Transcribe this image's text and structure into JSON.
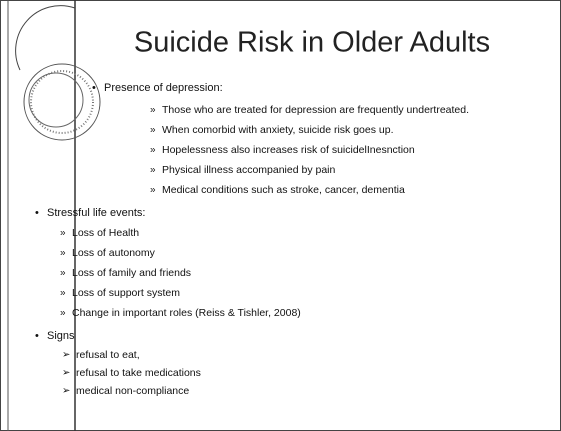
{
  "title": "Suicide Risk in Older Adults",
  "sections": [
    {
      "heading": "Presence of depression:",
      "items": [
        "Those who are treated for depression are frequently undertreated.",
        "When comorbid with anxiety, suicide risk goes up.",
        "Hopelessness also increases risk of suicidelInesnction",
        "Physical illness accompanied by pain",
        "Medical conditions such as stroke, cancer, dementia"
      ]
    },
    {
      "heading": "Stressful life events:",
      "items": [
        "Loss of Health",
        "Loss of autonomy",
        "Loss of family and friends",
        "Loss of support system",
        "Change in important roles (Reiss & Tishler, 2008)"
      ]
    },
    {
      "heading": "Signs",
      "items": [
        "refusal to eat,",
        "refusal to take medications",
        "medical non-compliance"
      ]
    }
  ]
}
